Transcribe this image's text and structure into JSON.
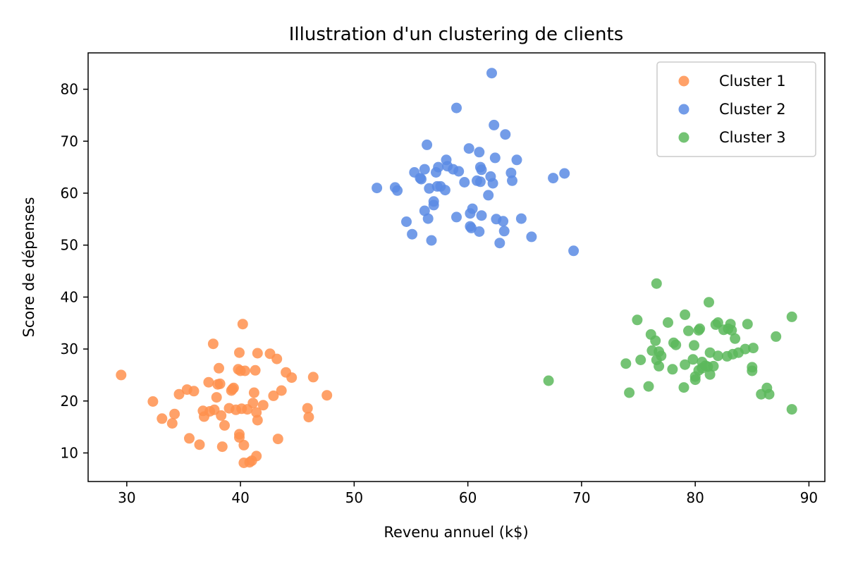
{
  "chart_data": {
    "type": "scatter",
    "title": "Illustration d'un clustering de clients",
    "xlabel": "Revenu annuel (k$)",
    "ylabel": "Score de dépenses",
    "xlim": [
      26.6,
      91.4
    ],
    "ylim": [
      4.5,
      87.0
    ],
    "xticks": [
      30,
      40,
      50,
      60,
      70,
      80,
      90
    ],
    "yticks": [
      10,
      20,
      30,
      40,
      50,
      60,
      70,
      80
    ],
    "grid": false,
    "legend_position": "top-right",
    "series": [
      {
        "name": "Cluster 1",
        "color": "#FF914D",
        "points": [
          [
            29.5,
            25.0
          ],
          [
            32.3,
            19.9
          ],
          [
            33.1,
            16.6
          ],
          [
            34.0,
            15.7
          ],
          [
            34.2,
            17.5
          ],
          [
            34.6,
            21.3
          ],
          [
            35.3,
            22.2
          ],
          [
            35.5,
            12.8
          ],
          [
            35.9,
            21.9
          ],
          [
            36.4,
            11.6
          ],
          [
            36.7,
            18.1
          ],
          [
            36.8,
            17.0
          ],
          [
            37.2,
            23.6
          ],
          [
            37.3,
            18.0
          ],
          [
            37.6,
            31.0
          ],
          [
            37.7,
            18.3
          ],
          [
            37.9,
            20.7
          ],
          [
            38.0,
            23.2
          ],
          [
            38.1,
            26.3
          ],
          [
            38.2,
            23.3
          ],
          [
            38.3,
            17.2
          ],
          [
            38.4,
            11.2
          ],
          [
            38.6,
            15.3
          ],
          [
            39.0,
            18.6
          ],
          [
            39.2,
            22.0
          ],
          [
            39.3,
            22.3
          ],
          [
            39.4,
            22.5
          ],
          [
            39.6,
            18.3
          ],
          [
            39.8,
            26.1
          ],
          [
            39.9,
            29.3
          ],
          [
            39.9,
            13.6
          ],
          [
            39.9,
            13.0
          ],
          [
            40.1,
            18.5
          ],
          [
            40.2,
            34.8
          ],
          [
            40.3,
            11.5
          ],
          [
            40.3,
            8.1
          ],
          [
            40.4,
            25.8
          ],
          [
            40.6,
            18.4
          ],
          [
            40.8,
            8.2
          ],
          [
            41.0,
            8.5
          ],
          [
            41.1,
            19.6
          ],
          [
            41.2,
            21.6
          ],
          [
            41.3,
            25.9
          ],
          [
            41.4,
            17.8
          ],
          [
            41.4,
            9.4
          ],
          [
            41.5,
            29.2
          ],
          [
            41.5,
            16.3
          ],
          [
            42.0,
            19.2
          ],
          [
            42.6,
            29.1
          ],
          [
            42.9,
            21.0
          ],
          [
            43.2,
            28.1
          ],
          [
            43.3,
            12.7
          ],
          [
            43.6,
            22.0
          ],
          [
            44.0,
            25.5
          ],
          [
            44.5,
            24.5
          ],
          [
            45.9,
            18.6
          ],
          [
            46.0,
            16.9
          ],
          [
            46.4,
            24.6
          ],
          [
            47.6,
            21.1
          ],
          [
            40.0,
            25.8
          ]
        ]
      },
      {
        "name": "Cluster 2",
        "color": "#5B8BE4",
        "points": [
          [
            52.0,
            61.0
          ],
          [
            53.6,
            61.1
          ],
          [
            53.8,
            60.5
          ],
          [
            54.6,
            54.5
          ],
          [
            55.1,
            52.1
          ],
          [
            55.3,
            64.0
          ],
          [
            55.8,
            62.9
          ],
          [
            55.9,
            62.7
          ],
          [
            56.2,
            56.6
          ],
          [
            56.2,
            64.6
          ],
          [
            56.4,
            69.3
          ],
          [
            56.5,
            55.1
          ],
          [
            56.6,
            60.9
          ],
          [
            56.8,
            50.9
          ],
          [
            57.0,
            58.4
          ],
          [
            57.0,
            57.7
          ],
          [
            57.2,
            64.0
          ],
          [
            57.3,
            61.3
          ],
          [
            57.4,
            65.0
          ],
          [
            57.6,
            61.3
          ],
          [
            58.0,
            60.6
          ],
          [
            58.1,
            66.4
          ],
          [
            58.2,
            65.2
          ],
          [
            58.7,
            64.6
          ],
          [
            59.0,
            55.4
          ],
          [
            59.0,
            76.4
          ],
          [
            59.2,
            64.2
          ],
          [
            59.7,
            62.1
          ],
          [
            60.1,
            68.6
          ],
          [
            60.2,
            56.1
          ],
          [
            60.2,
            53.6
          ],
          [
            60.3,
            53.3
          ],
          [
            60.4,
            57.0
          ],
          [
            60.8,
            62.4
          ],
          [
            61.0,
            52.6
          ],
          [
            61.0,
            67.9
          ],
          [
            61.1,
            62.2
          ],
          [
            61.1,
            65.0
          ],
          [
            61.2,
            64.5
          ],
          [
            61.2,
            55.7
          ],
          [
            61.8,
            59.6
          ],
          [
            62.0,
            63.2
          ],
          [
            62.1,
            83.1
          ],
          [
            62.2,
            61.9
          ],
          [
            62.3,
            73.1
          ],
          [
            62.4,
            66.8
          ],
          [
            62.5,
            55.0
          ],
          [
            62.8,
            50.4
          ],
          [
            63.1,
            54.6
          ],
          [
            63.2,
            52.7
          ],
          [
            63.3,
            71.3
          ],
          [
            63.8,
            63.9
          ],
          [
            63.9,
            62.4
          ],
          [
            64.3,
            66.4
          ],
          [
            64.7,
            55.1
          ],
          [
            65.6,
            51.6
          ],
          [
            67.5,
            62.9
          ],
          [
            68.5,
            63.8
          ],
          [
            69.3,
            48.9
          ]
        ]
      },
      {
        "name": "Cluster 3",
        "color": "#5CB85C",
        "points": [
          [
            67.1,
            23.9
          ],
          [
            73.9,
            27.2
          ],
          [
            74.2,
            21.6
          ],
          [
            74.9,
            35.6
          ],
          [
            75.2,
            27.9
          ],
          [
            75.9,
            22.8
          ],
          [
            76.1,
            32.8
          ],
          [
            76.2,
            29.7
          ],
          [
            76.5,
            31.6
          ],
          [
            76.6,
            42.6
          ],
          [
            76.6,
            27.9
          ],
          [
            76.8,
            26.7
          ],
          [
            76.8,
            29.5
          ],
          [
            77.0,
            28.7
          ],
          [
            77.6,
            35.1
          ],
          [
            78.0,
            26.1
          ],
          [
            78.1,
            31.2
          ],
          [
            78.3,
            30.8
          ],
          [
            79.0,
            22.6
          ],
          [
            79.1,
            27.0
          ],
          [
            79.1,
            36.6
          ],
          [
            79.4,
            33.5
          ],
          [
            79.8,
            28.0
          ],
          [
            79.9,
            30.7
          ],
          [
            80.0,
            24.1
          ],
          [
            80.0,
            24.7
          ],
          [
            80.3,
            25.9
          ],
          [
            80.3,
            33.6
          ],
          [
            80.4,
            33.9
          ],
          [
            80.6,
            27.5
          ],
          [
            80.6,
            26.3
          ],
          [
            80.9,
            26.8
          ],
          [
            81.1,
            26.6
          ],
          [
            81.2,
            39.0
          ],
          [
            81.3,
            25.1
          ],
          [
            81.3,
            29.3
          ],
          [
            81.6,
            26.7
          ],
          [
            81.8,
            34.7
          ],
          [
            82.0,
            35.1
          ],
          [
            82.0,
            28.7
          ],
          [
            82.5,
            33.7
          ],
          [
            82.8,
            28.6
          ],
          [
            82.9,
            33.9
          ],
          [
            83.1,
            34.8
          ],
          [
            83.2,
            33.6
          ],
          [
            83.3,
            29.0
          ],
          [
            83.5,
            32.0
          ],
          [
            83.8,
            29.3
          ],
          [
            84.4,
            30.0
          ],
          [
            84.6,
            34.8
          ],
          [
            85.0,
            26.5
          ],
          [
            85.1,
            30.2
          ],
          [
            85.0,
            25.8
          ],
          [
            85.8,
            21.3
          ],
          [
            86.3,
            22.5
          ],
          [
            86.5,
            21.3
          ],
          [
            87.1,
            32.4
          ],
          [
            88.5,
            36.2
          ],
          [
            88.5,
            18.4
          ]
        ]
      }
    ]
  }
}
